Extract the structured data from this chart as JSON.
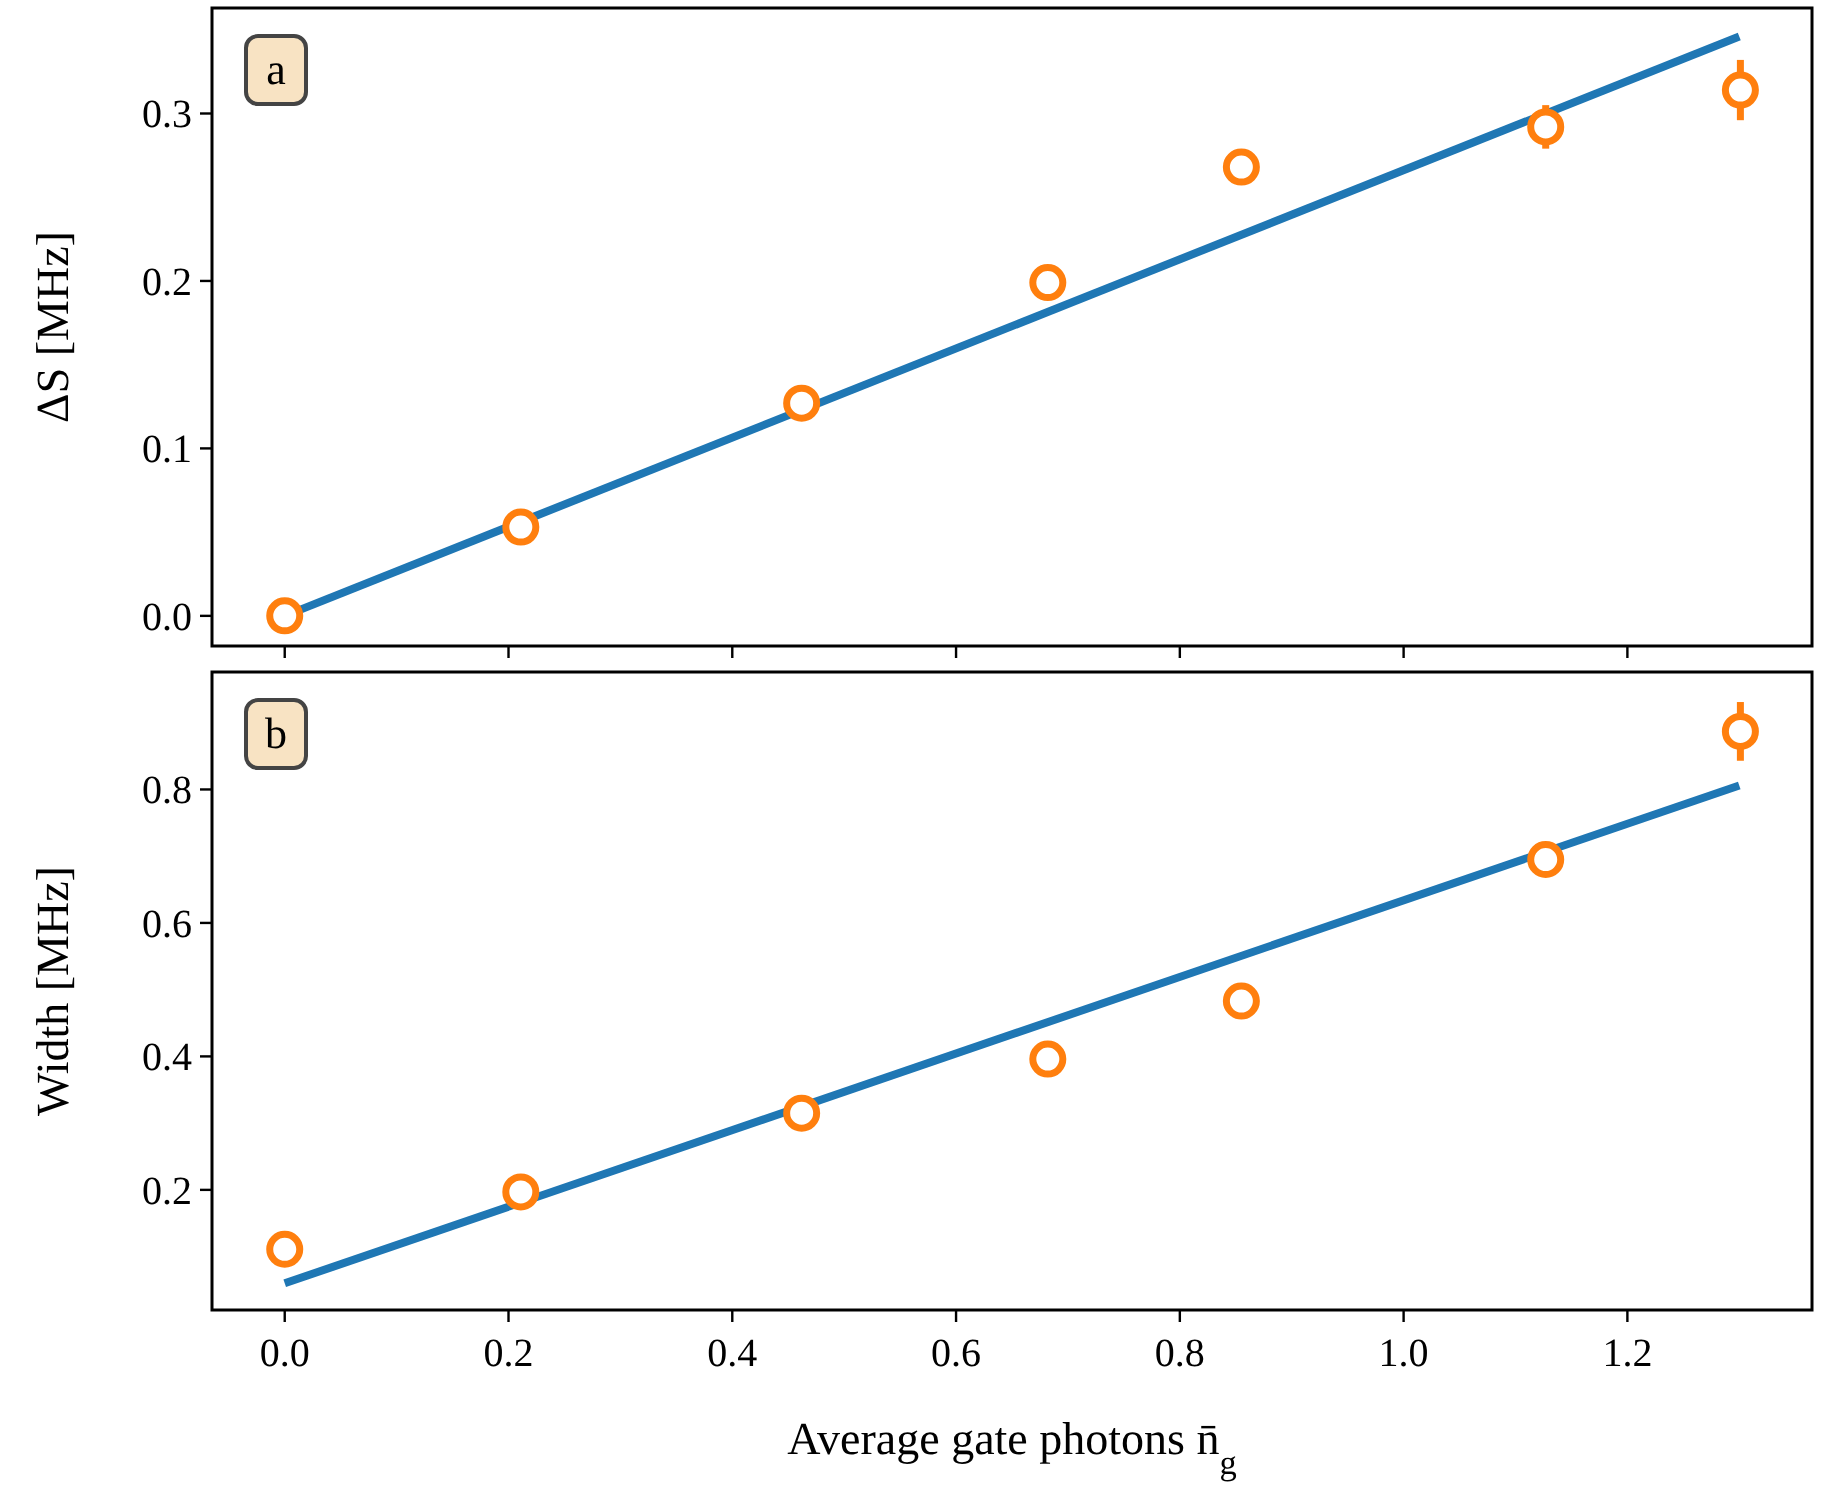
{
  "chart_data": [
    {
      "type": "scatter",
      "ylabel": "ΔS [MHz]",
      "annotations": [
        "a"
      ],
      "xlim": [
        -0.065,
        1.365
      ],
      "xticks": [
        0.0,
        0.2,
        0.4,
        0.6,
        0.8,
        1.0,
        1.2
      ],
      "ylim": [
        -0.018,
        0.363
      ],
      "yticks": [
        {
          "value": 0,
          "label": "0.0"
        },
        0.1,
        0.2,
        0.3
      ],
      "tick_labels": "y",
      "grid": false,
      "series": [
        {
          "type": "line",
          "color": "#1f77b4",
          "x": [
            0,
            1.3
          ],
          "values": [
            0.0,
            0.346
          ],
          "line_style": "solid"
        },
        {
          "color": "#ff7f0e",
          "x": [
            0,
            0.211,
            0.462,
            0.682,
            0.855,
            1.127,
            1.301
          ],
          "values": [
            0.0,
            0.053,
            0.127,
            0.199,
            0.268,
            0.292,
            0.314
          ],
          "errors": [
            null,
            null,
            null,
            null,
            null,
            0.013,
            0.018
          ],
          "marker": "circle"
        }
      ]
    },
    {
      "type": "scatter",
      "xlabel": "Average gate photons n̄$_{g}$",
      "ylabel": "Width [MHz]",
      "annotations": [
        "b"
      ],
      "xlim": [
        -0.065,
        1.365
      ],
      "xticks": [
        {
          "value": 0,
          "label": "0.0"
        },
        0.2,
        0.4,
        0.6,
        0.8,
        {
          "value": 1,
          "label": "1.0"
        },
        1.2
      ],
      "ylim": [
        0.02,
        0.976
      ],
      "yticks": [
        0.2,
        0.4,
        0.6,
        0.8
      ],
      "grid": false,
      "series": [
        {
          "type": "line",
          "color": "#1f77b4",
          "x": [
            0,
            1.3
          ],
          "values": [
            0.06,
            0.806
          ],
          "line_style": "solid"
        },
        {
          "color": "#ff7f0e",
          "x": [
            0,
            0.211,
            0.462,
            0.682,
            0.855,
            1.127,
            1.301
          ],
          "values": [
            0.111,
            0.197,
            0.315,
            0.396,
            0.483,
            0.695,
            0.887
          ],
          "errors": [
            null,
            null,
            null,
            null,
            null,
            null,
            0.044
          ],
          "marker": "circle"
        }
      ]
    }
  ]
}
